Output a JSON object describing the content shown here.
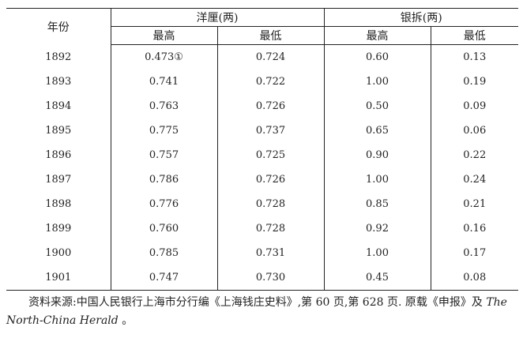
{
  "table": {
    "header": {
      "year": "年份",
      "groups": [
        "洋厘(两)",
        "银拆(两)"
      ],
      "sub": [
        "最高",
        "最低",
        "最高",
        "最低"
      ]
    },
    "rows": [
      [
        "1892",
        "0.473①",
        "0.724",
        "0.60",
        "0.13"
      ],
      [
        "1893",
        "0.741",
        "0.722",
        "1.00",
        "0.19"
      ],
      [
        "1894",
        "0.763",
        "0.726",
        "0.50",
        "0.09"
      ],
      [
        "1895",
        "0.775",
        "0.737",
        "0.65",
        "0.06"
      ],
      [
        "1896",
        "0.757",
        "0.725",
        "0.90",
        "0.22"
      ],
      [
        "1897",
        "0.786",
        "0.726",
        "1.00",
        "0.24"
      ],
      [
        "1898",
        "0.776",
        "0.728",
        "0.85",
        "0.21"
      ],
      [
        "1899",
        "0.760",
        "0.728",
        "0.92",
        "0.16"
      ],
      [
        "1900",
        "0.785",
        "0.731",
        "1.00",
        "0.17"
      ],
      [
        "1901",
        "0.747",
        "0.730",
        "0.45",
        "0.08"
      ]
    ]
  },
  "note": {
    "text": "资料来源:中国人民银行上海市分行编《上海钱庄史料》,第 60 页,第 628 页. 原载《申报》及 ",
    "italic": "The North-China Herald",
    "end": " 。"
  }
}
